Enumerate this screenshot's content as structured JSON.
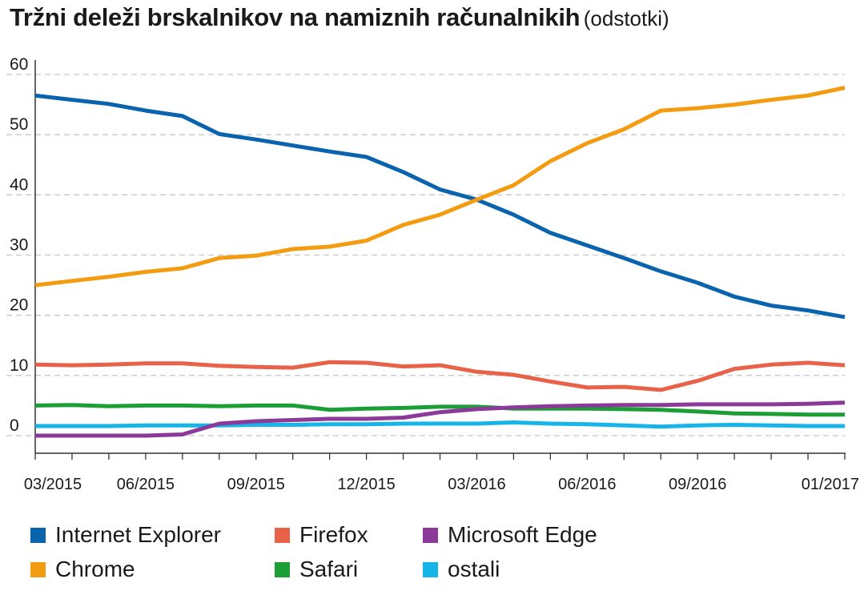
{
  "header": {
    "title": "Tržni deleži brskalnikov na namiznih računalnikih",
    "subtitle": "(odstotki)"
  },
  "chart_data": {
    "type": "line",
    "title": "Tržni deleži brskalnikov na namiznih računalnikih",
    "subtitle": "(odstotki)",
    "xlabel": "",
    "ylabel": "",
    "ylim": [
      0,
      60
    ],
    "yticks": [
      0,
      10,
      20,
      30,
      40,
      50,
      60
    ],
    "x": [
      "03/2015",
      "04/2015",
      "05/2015",
      "06/2015",
      "07/2015",
      "08/2015",
      "09/2015",
      "10/2015",
      "11/2015",
      "12/2015",
      "01/2016",
      "02/2016",
      "03/2016",
      "04/2016",
      "05/2016",
      "06/2016",
      "07/2016",
      "08/2016",
      "09/2016",
      "10/2016",
      "11/2016",
      "12/2016",
      "01/2017"
    ],
    "xtick_labels": [
      "03/2015",
      "06/2015",
      "09/2015",
      "12/2015",
      "03/2016",
      "06/2016",
      "09/2016",
      "01/2017"
    ],
    "grid": "horizontal dashed",
    "legend_position": "bottom",
    "series": [
      {
        "name": "Internet Explorer",
        "color": "#0a64ad",
        "values": [
          56.5,
          55.8,
          55.1,
          54.0,
          53.1,
          50.1,
          49.2,
          48.2,
          47.2,
          46.3,
          43.8,
          40.9,
          39.2,
          36.7,
          33.7,
          31.6,
          29.5,
          27.3,
          25.4,
          23.1,
          21.6,
          20.8,
          19.7
        ]
      },
      {
        "name": "Chrome",
        "color": "#f39c12",
        "values": [
          25.0,
          25.7,
          26.4,
          27.2,
          27.8,
          29.5,
          29.9,
          31.0,
          31.4,
          32.4,
          35.0,
          36.7,
          39.2,
          41.6,
          45.6,
          48.6,
          50.9,
          54.0,
          54.4,
          55.0,
          55.8,
          56.5,
          57.8
        ]
      },
      {
        "name": "Firefox",
        "color": "#e8624a",
        "values": [
          11.8,
          11.7,
          11.8,
          12.0,
          12.0,
          11.6,
          11.4,
          11.3,
          12.2,
          12.1,
          11.5,
          11.7,
          10.6,
          10.1,
          9.0,
          8.0,
          8.1,
          7.6,
          9.1,
          11.1,
          11.8,
          12.1,
          11.7
        ]
      },
      {
        "name": "Safari",
        "color": "#1a9e35",
        "values": [
          5.0,
          5.1,
          4.9,
          5.0,
          5.0,
          4.9,
          5.0,
          5.0,
          4.3,
          4.5,
          4.6,
          4.8,
          4.8,
          4.5,
          4.5,
          4.5,
          4.4,
          4.3,
          4.0,
          3.7,
          3.6,
          3.5,
          3.5
        ]
      },
      {
        "name": "Microsoft Edge",
        "color": "#8b3a9a",
        "values": [
          0.0,
          0.0,
          0.0,
          0.0,
          0.2,
          2.0,
          2.4,
          2.6,
          2.8,
          2.8,
          3.0,
          3.9,
          4.4,
          4.7,
          4.9,
          5.0,
          5.1,
          5.1,
          5.2,
          5.2,
          5.2,
          5.3,
          5.5
        ]
      },
      {
        "name": "ostali",
        "color": "#17b4e8",
        "values": [
          1.6,
          1.6,
          1.6,
          1.7,
          1.7,
          1.7,
          1.8,
          1.8,
          1.9,
          1.9,
          2.0,
          2.0,
          2.0,
          2.2,
          2.0,
          1.9,
          1.7,
          1.5,
          1.7,
          1.8,
          1.7,
          1.6,
          1.6
        ]
      }
    ]
  },
  "legend": [
    {
      "label": "Internet Explorer",
      "color": "#0a64ad"
    },
    {
      "label": "Firefox",
      "color": "#e8624a"
    },
    {
      "label": "Microsoft Edge",
      "color": "#8b3a9a"
    },
    {
      "label": "Chrome",
      "color": "#f39c12"
    },
    {
      "label": "Safari",
      "color": "#1a9e35"
    },
    {
      "label": "ostali",
      "color": "#17b4e8"
    }
  ]
}
